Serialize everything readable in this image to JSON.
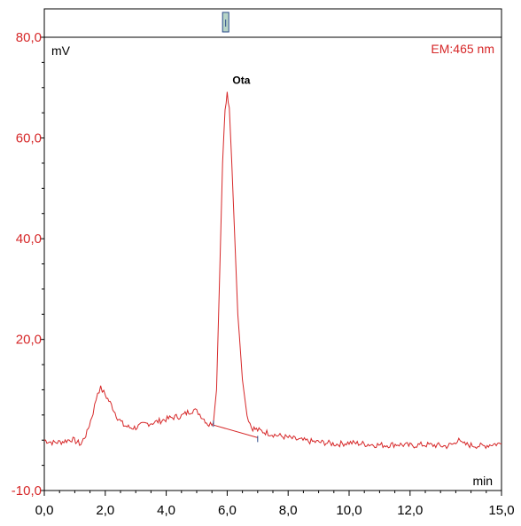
{
  "chart_data": {
    "type": "line",
    "title": "",
    "xlabel": "min",
    "ylabel": "mV",
    "channel_label": "EM:465 nm",
    "xlim": [
      0,
      15
    ],
    "ylim": [
      -10,
      80
    ],
    "grid": false,
    "x_ticks": [
      0,
      2,
      4,
      6,
      8,
      10,
      12,
      15
    ],
    "x_tick_labels": [
      "0,0",
      "2,0",
      "4,0",
      "6,0",
      "8,0",
      "10,0",
      "12,0",
      "15,0"
    ],
    "y_ticks": [
      -10,
      20,
      40,
      60,
      80
    ],
    "y_tick_labels": [
      "-10,0",
      "20,0",
      "40,0",
      "60,0",
      "80,0"
    ],
    "series": [
      {
        "color": "#d62728",
        "x": [
          0.0,
          0.3,
          0.6,
          0.9,
          1.2,
          1.4,
          1.6,
          1.75,
          1.85,
          2.0,
          2.2,
          2.4,
          2.6,
          2.8,
          3.0,
          3.3,
          3.6,
          3.9,
          4.2,
          4.5,
          4.7,
          4.9,
          5.05,
          5.2,
          5.4,
          5.55,
          5.65,
          5.75,
          5.85,
          5.93,
          6.0,
          6.07,
          6.15,
          6.25,
          6.35,
          6.5,
          6.65,
          6.8,
          7.0,
          7.3,
          7.6,
          8.0,
          8.4,
          8.8,
          9.2,
          9.6,
          10.0,
          10.4,
          10.8,
          11.2,
          11.6,
          12.0,
          12.4,
          12.8,
          13.2,
          13.5,
          13.6,
          13.7,
          14.0,
          14.4,
          14.7,
          15.0
        ],
        "y": [
          0.0,
          -0.5,
          -0.3,
          0.2,
          -0.8,
          1.5,
          5.5,
          9.5,
          10.3,
          9.0,
          7.0,
          4.5,
          3.0,
          2.5,
          2.5,
          3.2,
          3.5,
          4.0,
          4.5,
          4.8,
          5.5,
          6.0,
          5.5,
          4.5,
          3.0,
          3.5,
          10.0,
          32.0,
          55.0,
          66.0,
          69.0,
          66.0,
          55.0,
          40.0,
          25.0,
          12.0,
          5.0,
          2.5,
          2.0,
          1.5,
          1.0,
          0.5,
          0.0,
          -0.3,
          -0.5,
          -0.8,
          -0.5,
          -0.7,
          -0.9,
          -1.0,
          -0.8,
          -1.1,
          -0.9,
          -1.0,
          -1.2,
          -0.6,
          0.8,
          -0.8,
          -1.0,
          -1.2,
          -0.8,
          -0.7
        ]
      }
    ],
    "baseline": {
      "color": "#d62728",
      "x": [
        5.55,
        7.0
      ],
      "y": [
        3.0,
        0.5
      ]
    },
    "annotations": [
      {
        "text": "Ota",
        "x": 6.0,
        "y": 69.0
      }
    ],
    "window_marker": {
      "x": 5.95
    }
  }
}
